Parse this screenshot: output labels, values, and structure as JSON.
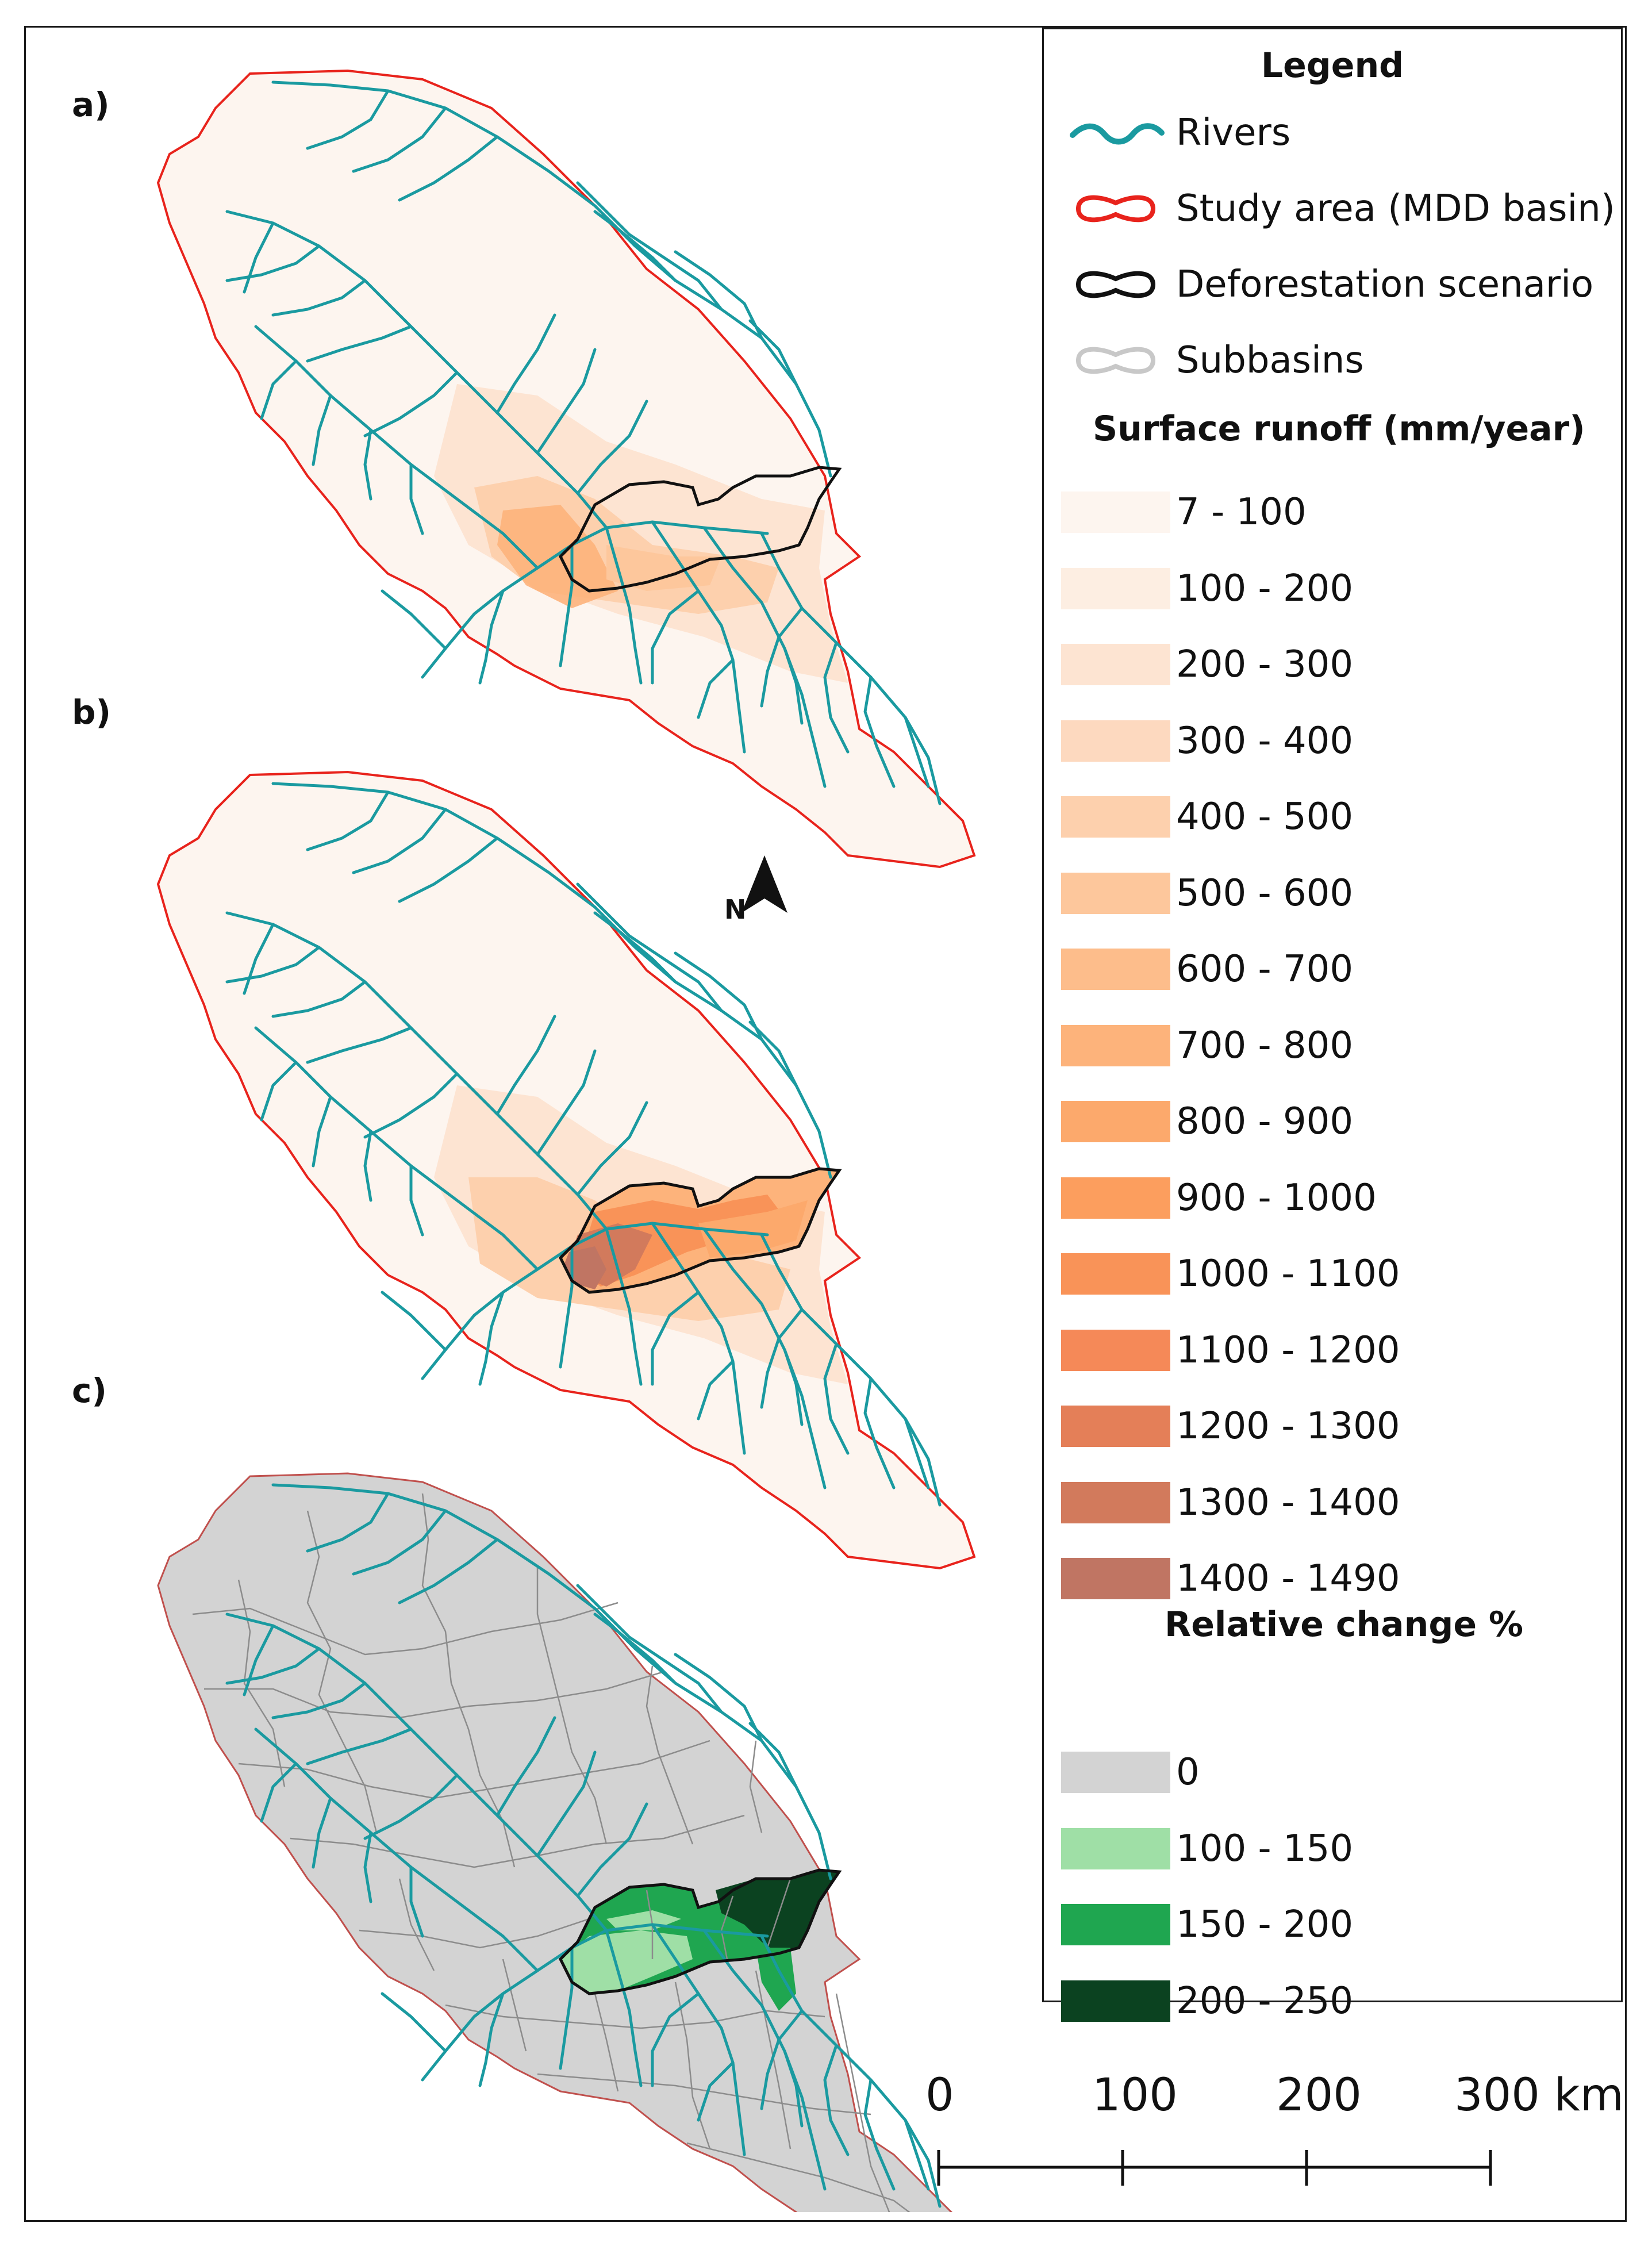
{
  "panels": [
    {
      "label": "a)",
      "mode": "baseline"
    },
    {
      "label": "b)",
      "mode": "scenario"
    },
    {
      "label": "c)",
      "mode": "change"
    }
  ],
  "north_arrow": {
    "label": "N"
  },
  "legend": {
    "title": "Legend",
    "lines": [
      {
        "label": "Rivers",
        "color": "#1a9aa0",
        "icon": "wavy-line-icon"
      },
      {
        "label": "Study area (MDD basin)",
        "color": "#e8231c",
        "icon": "outline-icon"
      },
      {
        "label": "Deforestation scenario",
        "color": "#111111",
        "icon": "outline-icon"
      },
      {
        "label": "Subbasins",
        "color": "#c8c8c8",
        "icon": "outline-icon"
      }
    ],
    "runoff": {
      "title": "Surface runoff (mm/year)",
      "classes": [
        {
          "label": "7 - 100",
          "color": "#fdf5ef"
        },
        {
          "label": "100 - 200",
          "color": "#fdeee2"
        },
        {
          "label": "200 - 300",
          "color": "#fde4d2"
        },
        {
          "label": "300 - 400",
          "color": "#fdd9bf"
        },
        {
          "label": "400 - 500",
          "color": "#fdd0ad"
        },
        {
          "label": "500 - 600",
          "color": "#fdc79c"
        },
        {
          "label": "600 - 700",
          "color": "#fdbd8b"
        },
        {
          "label": "700 - 800",
          "color": "#fdb37b"
        },
        {
          "label": "800 - 900",
          "color": "#fca96c"
        },
        {
          "label": "900 - 1000",
          "color": "#fc9e5e"
        },
        {
          "label": "1000 - 1100",
          "color": "#f99358"
        },
        {
          "label": "1100 - 1200",
          "color": "#f58958"
        },
        {
          "label": "1200 - 1300",
          "color": "#e47f58"
        },
        {
          "label": "1300 - 1400",
          "color": "#d27a5c"
        },
        {
          "label": "1400 - 1490",
          "color": "#c07563"
        }
      ]
    },
    "change": {
      "title": "Relative change %",
      "classes": [
        {
          "label": "0",
          "color": "#d3d3d3"
        },
        {
          "label": "100 - 150",
          "color": "#9fdfa6"
        },
        {
          "label": "150 - 200",
          "color": "#1fa650"
        },
        {
          "label": "200 - 250",
          "color": "#0b4220"
        }
      ]
    }
  },
  "scale_bar": {
    "ticks": [
      "0",
      "100",
      "200",
      "300 km"
    ]
  }
}
